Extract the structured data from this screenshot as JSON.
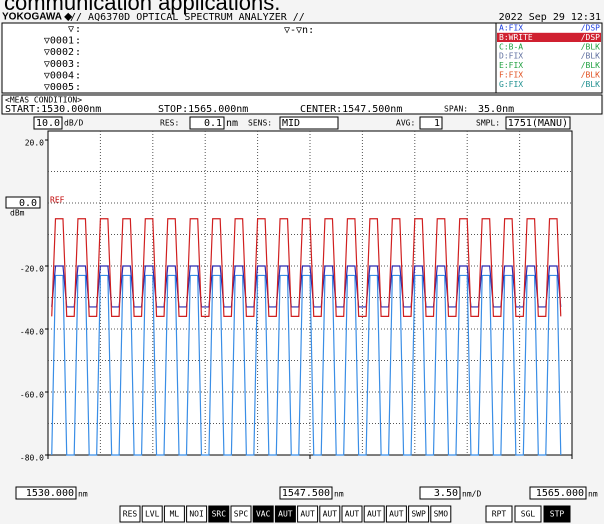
{
  "caption": "communication applications.",
  "header": {
    "brand": "YOKOGAWA ◆",
    "model": "// AQ6370D OPTICAL SPECTRUM ANALYZER //",
    "datetime": "2022 Sep 29 12:31"
  },
  "markers": {
    "labels": [
      "▽",
      "▽0001",
      "▽0002",
      "▽0003",
      "▽0004",
      "▽0005"
    ],
    "separator": ":",
    "delta": "▽-▽n:"
  },
  "traces": [
    {
      "label": "A:FIX",
      "state": "/DSP",
      "color": "#2040e0"
    },
    {
      "label": "B:WRITE",
      "state": "/DSP",
      "color": "#ffffff",
      "background": "#d02030"
    },
    {
      "label": "C:B-A",
      "state": "/BLK",
      "color": "#20a040"
    },
    {
      "label": "D:FIX",
      "state": "/BLK",
      "color": "#6070a0"
    },
    {
      "label": "E:FIX",
      "state": "/BLK",
      "color": "#20a040"
    },
    {
      "label": "F:FIX",
      "state": "/BLK",
      "color": "#e05020"
    },
    {
      "label": "G:FIX",
      "state": "/BLK",
      "color": "#209090"
    }
  ],
  "meas_condition": {
    "heading": "<MEAS CONDITION>",
    "start": "START:1530.000nm",
    "stop": "STOP:1565.000nm",
    "center": "CENTER:1547.500nm",
    "span_label": "SPAN:",
    "span": "35.0nm"
  },
  "settings": {
    "scale": "10.0",
    "scale_unit": "dB/D",
    "res_label": "RES:",
    "res": "0.1",
    "res_unit": "nm",
    "sens_label": "SENS:",
    "sens": "MID",
    "avg_label": "AVG:",
    "avg": "1",
    "smpl_label": "SMPL:",
    "smpl": "1751(MANU)"
  },
  "chart_data": {
    "type": "line",
    "xlim": [
      1530,
      1565
    ],
    "ylim": [
      -80,
      20
    ],
    "grid_divisions": 10,
    "yticks": [
      {
        "value": 20,
        "label": "20.0"
      },
      {
        "value": -20,
        "label": "-20.0"
      },
      {
        "value": -40,
        "label": "-40.0"
      },
      {
        "value": -60,
        "label": "-60.0"
      },
      {
        "value": -80,
        "label": "-80.0"
      }
    ],
    "ref": {
      "value": 0,
      "label": "0.0"
    },
    "ref_text": "REF",
    "ref_unit": "dBm",
    "xticks": [
      {
        "value": 1530,
        "label": "1530.000"
      },
      {
        "value": 1547.5,
        "label": "1547.500"
      },
      {
        "value": 1565,
        "label": "1565.000"
      }
    ],
    "x_unit": "nm",
    "span_per_div": "3.50",
    "span_per_div_unit": "nm/D",
    "x": [
      1530.25,
      1530.5,
      1531,
      1531.25,
      1531.75,
      1532,
      1532.5,
      1532.75,
      1533.25,
      1533.5,
      1534,
      1534.25,
      1534.75,
      1535,
      1535.5,
      1535.75,
      1536.25,
      1536.5,
      1537,
      1537.25,
      1537.75,
      1538,
      1538.5,
      1538.75,
      1539.25,
      1539.5,
      1540,
      1540.25,
      1540.75,
      1541,
      1541.5,
      1541.75,
      1542.25,
      1542.5,
      1543,
      1543.25,
      1543.75,
      1544,
      1544.5,
      1544.75,
      1545.25,
      1545.5,
      1546,
      1546.25,
      1546.75,
      1547,
      1547.5,
      1547.75,
      1548.25,
      1548.5,
      1549,
      1549.25,
      1549.75,
      1550,
      1550.5,
      1550.75,
      1551.25,
      1551.5,
      1552,
      1552.25,
      1552.75,
      1553,
      1553.5,
      1553.75,
      1554.25,
      1554.5,
      1555,
      1555.25,
      1555.75,
      1556,
      1556.5,
      1556.75,
      1557.25,
      1557.5,
      1558,
      1558.25,
      1558.75,
      1559,
      1559.5,
      1559.75,
      1560.25,
      1560.5,
      1561,
      1561.25,
      1561.75,
      1562,
      1562.5,
      1562.75,
      1563.25,
      1563.5,
      1564,
      1564.25
    ],
    "series": [
      {
        "color": "#3a8ee6",
        "values": [
          -80,
          -23,
          -23,
          -80,
          -80,
          -23,
          -23,
          -80,
          -80,
          -23,
          -23,
          -80,
          -80,
          -23,
          -23,
          -80,
          -80,
          -23,
          -23,
          -80,
          -80,
          -23,
          -23,
          -80,
          -80,
          -23,
          -23,
          -80,
          -80,
          -23,
          -23,
          -80,
          -80,
          -23,
          -23,
          -80,
          -80,
          -23,
          -23,
          -80,
          -80,
          -23,
          -23,
          -80,
          -80,
          -23,
          -23,
          -80,
          -80,
          -23,
          -23,
          -80,
          -80,
          -23,
          -23,
          -80,
          -80,
          -23,
          -23,
          -80,
          -80,
          -23,
          -23,
          -80,
          -80,
          -23,
          -23,
          -80,
          -80,
          -23,
          -23,
          -80,
          -80,
          -23,
          -23,
          -80,
          -80,
          -23,
          -23,
          -80,
          -80,
          -23,
          -23,
          -80,
          -80,
          -23,
          -23,
          -80,
          -80,
          -23,
          -23,
          -80
        ]
      },
      {
        "color": "#2a2ab0",
        "values": [
          -33,
          -20,
          -20,
          -33,
          -33,
          -20,
          -20,
          -33,
          -33,
          -20,
          -20,
          -33,
          -33,
          -20,
          -20,
          -33,
          -33,
          -20,
          -20,
          -33,
          -33,
          -20,
          -20,
          -33,
          -33,
          -20,
          -20,
          -33,
          -33,
          -20,
          -20,
          -33,
          -33,
          -20,
          -20,
          -33,
          -33,
          -20,
          -20,
          -33,
          -33,
          -20,
          -20,
          -33,
          -33,
          -20,
          -20,
          -33,
          -33,
          -20,
          -20,
          -33,
          -33,
          -20,
          -20,
          -33,
          -33,
          -20,
          -20,
          -33,
          -33,
          -20,
          -20,
          -33,
          -33,
          -20,
          -20,
          -33,
          -33,
          -20,
          -20,
          -33,
          -33,
          -20,
          -20,
          -33,
          -33,
          -20,
          -20,
          -33,
          -33,
          -20,
          -20,
          -33,
          -33,
          -20,
          -20,
          -33,
          -33,
          -20,
          -20,
          -33
        ]
      },
      {
        "color": "#d02020",
        "values": [
          -36,
          -5,
          -5,
          -36,
          -36,
          -5,
          -5,
          -36,
          -36,
          -5,
          -5,
          -36,
          -36,
          -5,
          -5,
          -36,
          -36,
          -5,
          -5,
          -36,
          -36,
          -5,
          -5,
          -36,
          -36,
          -5,
          -5,
          -36,
          -36,
          -5,
          -5,
          -36,
          -36,
          -5,
          -5,
          -36,
          -36,
          -5,
          -5,
          -36,
          -36,
          -5,
          -5,
          -36,
          -36,
          -5,
          -5,
          -36,
          -36,
          -5,
          -5,
          -36,
          -36,
          -5,
          -5,
          -36,
          -36,
          -5,
          -5,
          -36,
          -36,
          -5,
          -5,
          -36,
          -36,
          -5,
          -5,
          -36,
          -36,
          -5,
          -5,
          -36,
          -36,
          -5,
          -5,
          -36,
          -36,
          -5,
          -5,
          -36,
          -36,
          -5,
          -5,
          -36,
          -36,
          -5,
          -5,
          -36,
          -36,
          -5,
          -5,
          -36
        ]
      }
    ]
  },
  "softkeys": [
    {
      "label": "RES",
      "active": false
    },
    {
      "label": "LVL",
      "active": false
    },
    {
      "label": "ML",
      "active": false
    },
    {
      "label": "NOI",
      "active": false
    },
    {
      "label": "SRC",
      "active": true
    },
    {
      "label": "SPC",
      "active": false
    },
    {
      "label": "VAC",
      "active": true
    },
    {
      "label": "AUT",
      "active": true
    },
    {
      "label": "AUT",
      "active": false
    },
    {
      "label": "AUT",
      "active": false
    },
    {
      "label": "AUT",
      "active": false
    },
    {
      "label": "AUT",
      "active": false
    },
    {
      "label": "AUT",
      "active": false
    },
    {
      "label": "SWP",
      "active": false
    },
    {
      "label": "SMO",
      "active": false
    }
  ],
  "run_keys": [
    {
      "label": "RPT",
      "active": false
    },
    {
      "label": "SGL",
      "active": false
    },
    {
      "label": "STP",
      "active": true
    }
  ]
}
